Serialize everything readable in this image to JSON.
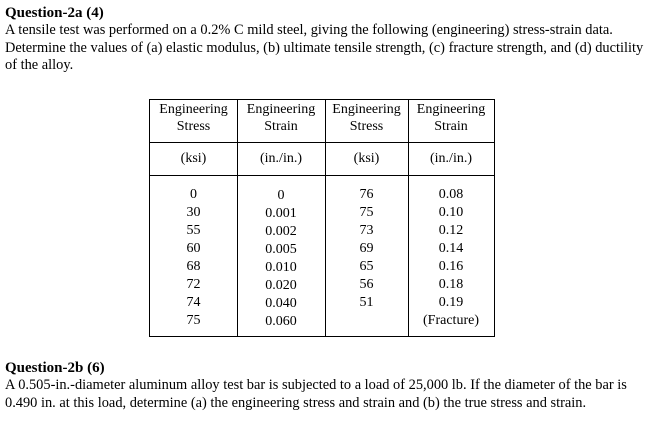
{
  "q2a": {
    "title": "Question-2a (4)",
    "text": "A tensile test was performed on a 0.2% C mild steel, giving the following (engineering) stress-strain data. Determine the values of (a) elastic modulus, (b) ultimate tensile strength, (c) fracture strength, and (d) ductility of the alloy."
  },
  "table": {
    "headers": [
      {
        "line1": "Engineering",
        "line2": "Stress",
        "unit": "(ksi)"
      },
      {
        "line1": "Engineering",
        "line2": "Strain",
        "unit": "(in./in.)"
      },
      {
        "line1": "Engineering",
        "line2": "Stress",
        "unit": "(ksi)"
      },
      {
        "line1": "Engineering",
        "line2": "Strain",
        "unit": "(in./in.)"
      }
    ],
    "columns": [
      [
        "0",
        "30",
        "55",
        "60",
        "68",
        "72",
        "74",
        "75"
      ],
      [
        "0",
        "0.001",
        "0.002",
        "0.005",
        "0.010",
        "0.020",
        "0.040",
        "0.060"
      ],
      [
        "76",
        "75",
        "73",
        "69",
        "65",
        "56",
        "51"
      ],
      [
        "0.08",
        "0.10",
        "0.12",
        "0.14",
        "0.16",
        "0.18",
        "0.19",
        "(Fracture)"
      ]
    ]
  },
  "q2b": {
    "title": "Question-2b (6)",
    "text": "A 0.505-in.-diameter aluminum alloy test bar is subjected to a load of 25,000 lb. If the diameter of the bar is 0.490 in. at this load, determine (a) the engineering stress and strain and (b) the true stress and strain."
  }
}
